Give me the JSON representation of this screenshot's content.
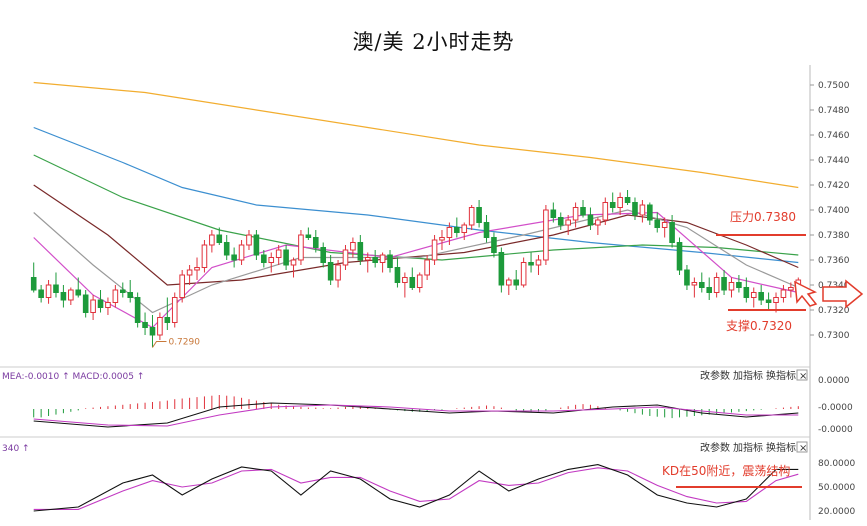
{
  "chart_data": {
    "type": "candlestick",
    "title": "澳/美 2小时走势",
    "price_axis": {
      "ylim": [
        0.728,
        0.7512
      ],
      "ticks": [
        "0.7500",
        "0.7480",
        "0.7460",
        "0.7440",
        "0.7420",
        "0.7400",
        "0.7380",
        "0.7360",
        "0.7340",
        "0.7320",
        "0.7300"
      ]
    },
    "candles": [
      [
        0.7346,
        0.7358,
        0.7334,
        0.7336
      ],
      [
        0.7336,
        0.734,
        0.7326,
        0.733
      ],
      [
        0.733,
        0.7344,
        0.7325,
        0.734
      ],
      [
        0.734,
        0.735,
        0.733,
        0.7334
      ],
      [
        0.7334,
        0.734,
        0.7322,
        0.7328
      ],
      [
        0.7328,
        0.7338,
        0.7324,
        0.7336
      ],
      [
        0.7336,
        0.7346,
        0.733,
        0.7332
      ],
      [
        0.7332,
        0.7336,
        0.7314,
        0.7318
      ],
      [
        0.7318,
        0.7332,
        0.7312,
        0.7328
      ],
      [
        0.7328,
        0.7336,
        0.7318,
        0.7322
      ],
      [
        0.7322,
        0.733,
        0.7316,
        0.7326
      ],
      [
        0.7326,
        0.734,
        0.7322,
        0.7336
      ],
      [
        0.7336,
        0.7342,
        0.733,
        0.7334
      ],
      [
        0.7334,
        0.7344,
        0.7326,
        0.733
      ],
      [
        0.733,
        0.7334,
        0.7306,
        0.731
      ],
      [
        0.731,
        0.7318,
        0.73,
        0.7306
      ],
      [
        0.7306,
        0.7316,
        0.729,
        0.73
      ],
      [
        0.73,
        0.7318,
        0.7296,
        0.7314
      ],
      [
        0.7314,
        0.733,
        0.7304,
        0.731
      ],
      [
        0.731,
        0.7334,
        0.7306,
        0.733
      ],
      [
        0.733,
        0.7352,
        0.7326,
        0.7348
      ],
      [
        0.7348,
        0.7356,
        0.734,
        0.7352
      ],
      [
        0.7352,
        0.7362,
        0.7344,
        0.7354
      ],
      [
        0.7354,
        0.7376,
        0.735,
        0.7372
      ],
      [
        0.7372,
        0.7384,
        0.7366,
        0.738
      ],
      [
        0.738,
        0.7386,
        0.7372,
        0.7374
      ],
      [
        0.7374,
        0.738,
        0.736,
        0.7364
      ],
      [
        0.7364,
        0.737,
        0.7354,
        0.736
      ],
      [
        0.736,
        0.7376,
        0.7356,
        0.7372
      ],
      [
        0.7372,
        0.7384,
        0.7368,
        0.738
      ],
      [
        0.738,
        0.7384,
        0.736,
        0.7364
      ],
      [
        0.7364,
        0.7368,
        0.7354,
        0.7358
      ],
      [
        0.7358,
        0.7366,
        0.735,
        0.7362
      ],
      [
        0.7362,
        0.7372,
        0.7356,
        0.7368
      ],
      [
        0.7368,
        0.7372,
        0.7352,
        0.7356
      ],
      [
        0.7356,
        0.7362,
        0.7346,
        0.736
      ],
      [
        0.736,
        0.7384,
        0.7356,
        0.738
      ],
      [
        0.738,
        0.7386,
        0.7376,
        0.7378
      ],
      [
        0.7378,
        0.7384,
        0.7366,
        0.737
      ],
      [
        0.737,
        0.7374,
        0.7354,
        0.7358
      ],
      [
        0.7358,
        0.7364,
        0.734,
        0.7344
      ],
      [
        0.7344,
        0.736,
        0.7338,
        0.7356
      ],
      [
        0.7356,
        0.7372,
        0.7352,
        0.7368
      ],
      [
        0.7368,
        0.7378,
        0.7362,
        0.7374
      ],
      [
        0.7374,
        0.738,
        0.7356,
        0.736
      ],
      [
        0.736,
        0.7366,
        0.735,
        0.7362
      ],
      [
        0.7362,
        0.7368,
        0.7354,
        0.7358
      ],
      [
        0.7358,
        0.7366,
        0.735,
        0.7364
      ],
      [
        0.7364,
        0.7368,
        0.735,
        0.7354
      ],
      [
        0.7354,
        0.7362,
        0.7338,
        0.7342
      ],
      [
        0.7342,
        0.735,
        0.733,
        0.7346
      ],
      [
        0.7346,
        0.7354,
        0.7336,
        0.7338
      ],
      [
        0.7338,
        0.735,
        0.7334,
        0.7348
      ],
      [
        0.7348,
        0.7364,
        0.7344,
        0.736
      ],
      [
        0.736,
        0.738,
        0.7356,
        0.7376
      ],
      [
        0.7376,
        0.7384,
        0.7368,
        0.7378
      ],
      [
        0.7378,
        0.739,
        0.7372,
        0.7386
      ],
      [
        0.7386,
        0.7394,
        0.7378,
        0.7382
      ],
      [
        0.7382,
        0.739,
        0.7376,
        0.7388
      ],
      [
        0.7388,
        0.7404,
        0.7384,
        0.7402
      ],
      [
        0.7402,
        0.7408,
        0.7386,
        0.739
      ],
      [
        0.739,
        0.7396,
        0.7374,
        0.7378
      ],
      [
        0.7378,
        0.7382,
        0.7362,
        0.7366
      ],
      [
        0.7366,
        0.737,
        0.7334,
        0.734
      ],
      [
        0.734,
        0.7346,
        0.7332,
        0.7344
      ],
      [
        0.7344,
        0.7352,
        0.7336,
        0.734
      ],
      [
        0.734,
        0.7362,
        0.7338,
        0.7358
      ],
      [
        0.7358,
        0.7366,
        0.735,
        0.7356
      ],
      [
        0.7356,
        0.7364,
        0.7348,
        0.736
      ],
      [
        0.736,
        0.7404,
        0.7356,
        0.74
      ],
      [
        0.74,
        0.7406,
        0.739,
        0.7394
      ],
      [
        0.7394,
        0.7398,
        0.7384,
        0.7388
      ],
      [
        0.7388,
        0.7396,
        0.738,
        0.7392
      ],
      [
        0.7392,
        0.7406,
        0.7386,
        0.7402
      ],
      [
        0.7402,
        0.7408,
        0.7394,
        0.7396
      ],
      [
        0.7396,
        0.7402,
        0.7384,
        0.7388
      ],
      [
        0.7388,
        0.7394,
        0.738,
        0.7392
      ],
      [
        0.7392,
        0.741,
        0.7388,
        0.7406
      ],
      [
        0.7406,
        0.7414,
        0.7398,
        0.7402
      ],
      [
        0.7402,
        0.7414,
        0.7396,
        0.741
      ],
      [
        0.741,
        0.7416,
        0.7404,
        0.7406
      ],
      [
        0.7406,
        0.741,
        0.7392,
        0.7396
      ],
      [
        0.7396,
        0.7408,
        0.739,
        0.7404
      ],
      [
        0.7404,
        0.7406,
        0.7388,
        0.7392
      ],
      [
        0.7392,
        0.7398,
        0.7382,
        0.7386
      ],
      [
        0.7386,
        0.7394,
        0.7378,
        0.739
      ],
      [
        0.739,
        0.7396,
        0.737,
        0.7374
      ],
      [
        0.7374,
        0.7378,
        0.7348,
        0.7352
      ],
      [
        0.7352,
        0.7356,
        0.7336,
        0.734
      ],
      [
        0.734,
        0.7346,
        0.733,
        0.7342
      ],
      [
        0.7342,
        0.735,
        0.7334,
        0.7338
      ],
      [
        0.7338,
        0.7346,
        0.7328,
        0.7334
      ],
      [
        0.7334,
        0.735,
        0.733,
        0.7346
      ],
      [
        0.7346,
        0.7352,
        0.7332,
        0.7336
      ],
      [
        0.7336,
        0.7346,
        0.733,
        0.7342
      ],
      [
        0.7342,
        0.7348,
        0.7334,
        0.7338
      ],
      [
        0.7338,
        0.7346,
        0.7326,
        0.733
      ],
      [
        0.733,
        0.7338,
        0.7322,
        0.7334
      ],
      [
        0.7334,
        0.734,
        0.7324,
        0.7328
      ],
      [
        0.7328,
        0.7334,
        0.732,
        0.7326
      ],
      [
        0.7326,
        0.7334,
        0.7318,
        0.733
      ],
      [
        0.733,
        0.734,
        0.7326,
        0.7336
      ],
      [
        0.7336,
        0.7342,
        0.733,
        0.7338
      ],
      [
        0.7338,
        0.7346,
        0.7334,
        0.7344
      ]
    ],
    "moving_averages": [
      {
        "color": "#f2ad2f",
        "values": [
          [
            0,
            0.7502
          ],
          [
            15,
            0.7494
          ],
          [
            30,
            0.748
          ],
          [
            45,
            0.7466
          ],
          [
            60,
            0.7452
          ],
          [
            75,
            0.7442
          ],
          [
            90,
            0.743
          ],
          [
            103,
            0.7418
          ]
        ]
      },
      {
        "color": "#3c8fd0",
        "values": [
          [
            0,
            0.7466
          ],
          [
            12,
            0.7438
          ],
          [
            20,
            0.7418
          ],
          [
            30,
            0.7404
          ],
          [
            45,
            0.7396
          ],
          [
            60,
            0.7384
          ],
          [
            75,
            0.7374
          ],
          [
            90,
            0.7366
          ],
          [
            103,
            0.7358
          ]
        ]
      },
      {
        "color": "#3aa24a",
        "values": [
          [
            0,
            0.7444
          ],
          [
            12,
            0.741
          ],
          [
            25,
            0.7384
          ],
          [
            40,
            0.7366
          ],
          [
            55,
            0.736
          ],
          [
            70,
            0.7368
          ],
          [
            82,
            0.7372
          ],
          [
            92,
            0.737
          ],
          [
            103,
            0.7364
          ]
        ]
      },
      {
        "color": "#7a2a2a",
        "values": [
          [
            0,
            0.742
          ],
          [
            10,
            0.738
          ],
          [
            18,
            0.734
          ],
          [
            28,
            0.7344
          ],
          [
            42,
            0.7358
          ],
          [
            58,
            0.7366
          ],
          [
            70,
            0.738
          ],
          [
            80,
            0.7396
          ],
          [
            88,
            0.739
          ],
          [
            96,
            0.7372
          ],
          [
            103,
            0.7354
          ]
        ]
      },
      {
        "color": "#9a9a9a",
        "values": [
          [
            0,
            0.7398
          ],
          [
            8,
            0.7356
          ],
          [
            16,
            0.7318
          ],
          [
            24,
            0.734
          ],
          [
            36,
            0.7362
          ],
          [
            52,
            0.7362
          ],
          [
            66,
            0.738
          ],
          [
            80,
            0.74
          ],
          [
            88,
            0.7386
          ],
          [
            96,
            0.7356
          ],
          [
            103,
            0.7338
          ]
        ]
      },
      {
        "color": "#d24fc9",
        "values": [
          [
            0,
            0.7378
          ],
          [
            8,
            0.7332
          ],
          [
            16,
            0.7306
          ],
          [
            24,
            0.7354
          ],
          [
            34,
            0.7372
          ],
          [
            48,
            0.7362
          ],
          [
            60,
            0.7382
          ],
          [
            74,
            0.7396
          ],
          [
            84,
            0.7398
          ],
          [
            94,
            0.7346
          ],
          [
            103,
            0.7334
          ]
        ]
      }
    ],
    "annotations": [
      {
        "text": "压力0.7380",
        "price": 0.738,
        "color": "#e23c2c"
      },
      {
        "text": "支撑0.7320",
        "price": 0.732,
        "color": "#e23c2c"
      },
      {
        "text": "0.7290",
        "price": 0.729,
        "index": 16
      }
    ],
    "macd": {
      "header": "MEA:-0.0010 ↑ MACD:0.0005 ↑",
      "ticks": [
        "0.0000",
        "-0.0000",
        "-0.0000"
      ],
      "histogram": [
        -0.6,
        -0.6,
        -0.5,
        -0.4,
        -0.3,
        -0.2,
        -0.1,
        0.05,
        0.1,
        0.15,
        0.2,
        0.25,
        0.3,
        0.35,
        0.4,
        0.45,
        0.5,
        0.55,
        0.6,
        0.7,
        0.75,
        0.8,
        0.85,
        0.9,
        0.95,
        1.0,
        0.95,
        0.9,
        0.8,
        0.7,
        0.6,
        0.5,
        0.4,
        0.3,
        0.25,
        0.2,
        0.15,
        0.1,
        0.1,
        0.05,
        0.05,
        0.1,
        0.15,
        0.2,
        0.15,
        0.1,
        0.05,
        0.0,
        -0.05,
        -0.1,
        -0.15,
        -0.2,
        -0.2,
        -0.15,
        -0.1,
        -0.05,
        0.0,
        0.05,
        0.1,
        0.15,
        0.2,
        0.25,
        0.2,
        0.1,
        0.0,
        -0.1,
        -0.2,
        -0.25,
        -0.2,
        -0.1,
        0.0,
        0.1,
        0.2,
        0.3,
        0.35,
        0.3,
        0.2,
        0.1,
        0.0,
        -0.1,
        -0.2,
        -0.3,
        -0.4,
        -0.5,
        -0.55,
        -0.6,
        -0.65,
        -0.6,
        -0.55,
        -0.5,
        -0.45,
        -0.4,
        -0.35,
        -0.3,
        -0.25,
        -0.2,
        -0.15,
        -0.1,
        -0.05,
        0.0,
        0.05,
        0.1,
        0.15,
        0.2
      ],
      "dif": [
        [
          0,
          -0.6
        ],
        [
          10,
          -0.9
        ],
        [
          18,
          -0.7
        ],
        [
          25,
          0.1
        ],
        [
          32,
          0.3
        ],
        [
          40,
          0.2
        ],
        [
          48,
          0.0
        ],
        [
          56,
          -0.2
        ],
        [
          62,
          -0.1
        ],
        [
          70,
          -0.2
        ],
        [
          78,
          0.1
        ],
        [
          84,
          0.2
        ],
        [
          90,
          -0.2
        ],
        [
          96,
          -0.4
        ],
        [
          103,
          -0.2
        ]
      ],
      "dea": [
        [
          0,
          -0.5
        ],
        [
          10,
          -0.8
        ],
        [
          18,
          -0.85
        ],
        [
          25,
          -0.3
        ],
        [
          32,
          0.1
        ],
        [
          40,
          0.2
        ],
        [
          48,
          0.1
        ],
        [
          56,
          -0.1
        ],
        [
          62,
          -0.1
        ],
        [
          70,
          -0.1
        ],
        [
          78,
          0.0
        ],
        [
          84,
          0.1
        ],
        [
          90,
          -0.1
        ],
        [
          96,
          -0.3
        ],
        [
          103,
          -0.3
        ]
      ]
    },
    "kd": {
      "header": "340 ↑",
      "ticks": [
        "80.0000",
        "50.0000",
        "20.0000"
      ],
      "k": [
        [
          0,
          20
        ],
        [
          6,
          25
        ],
        [
          12,
          55
        ],
        [
          16,
          65
        ],
        [
          20,
          40
        ],
        [
          24,
          60
        ],
        [
          28,
          75
        ],
        [
          32,
          70
        ],
        [
          36,
          40
        ],
        [
          40,
          70
        ],
        [
          44,
          60
        ],
        [
          48,
          35
        ],
        [
          52,
          25
        ],
        [
          56,
          40
        ],
        [
          60,
          70
        ],
        [
          64,
          45
        ],
        [
          68,
          60
        ],
        [
          72,
          72
        ],
        [
          76,
          78
        ],
        [
          80,
          65
        ],
        [
          84,
          40
        ],
        [
          88,
          30
        ],
        [
          92,
          25
        ],
        [
          96,
          35
        ],
        [
          100,
          72
        ],
        [
          103,
          72
        ]
      ],
      "d": [
        [
          0,
          22
        ],
        [
          6,
          22
        ],
        [
          12,
          45
        ],
        [
          16,
          58
        ],
        [
          20,
          50
        ],
        [
          24,
          55
        ],
        [
          28,
          70
        ],
        [
          32,
          72
        ],
        [
          36,
          55
        ],
        [
          40,
          62
        ],
        [
          44,
          62
        ],
        [
          48,
          45
        ],
        [
          52,
          32
        ],
        [
          56,
          35
        ],
        [
          60,
          58
        ],
        [
          64,
          52
        ],
        [
          68,
          55
        ],
        [
          72,
          68
        ],
        [
          76,
          74
        ],
        [
          80,
          70
        ],
        [
          84,
          52
        ],
        [
          88,
          38
        ],
        [
          92,
          30
        ],
        [
          96,
          32
        ],
        [
          100,
          58
        ],
        [
          103,
          66
        ]
      ],
      "annotation": "KD在50附近，震荡结构",
      "annotation_level": 50
    },
    "controls": [
      "改参数",
      "加指标",
      "换指标",
      "×"
    ]
  }
}
